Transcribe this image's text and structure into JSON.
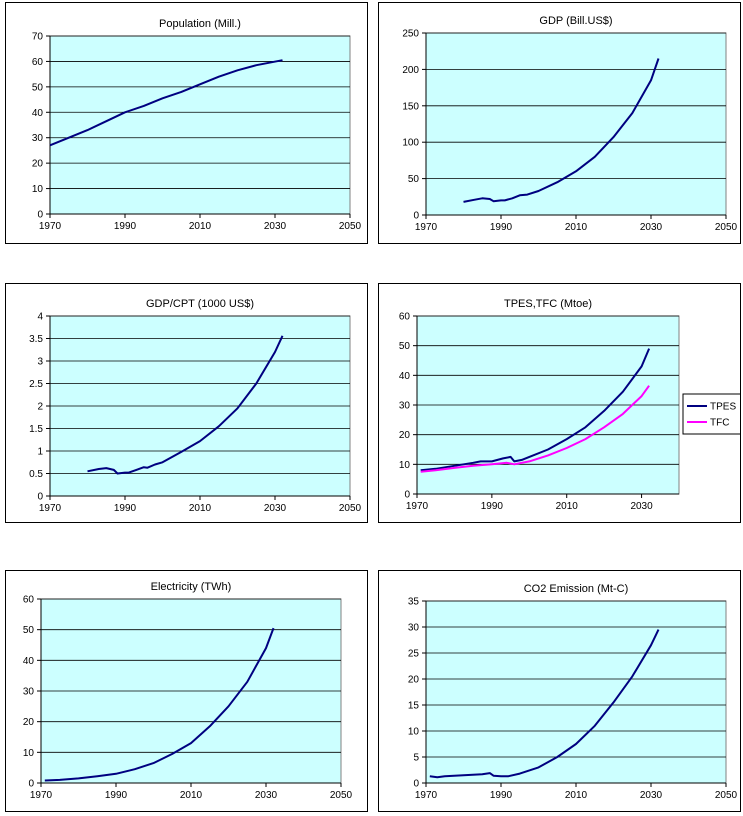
{
  "chart_data": [
    {
      "type": "line",
      "title": "Population (Mill.)",
      "xlim": [
        1970,
        2050
      ],
      "ylim": [
        0,
        70
      ],
      "xticks": [
        1970,
        1990,
        2010,
        2030,
        2050
      ],
      "yticks": [
        0,
        10,
        20,
        30,
        40,
        50,
        60,
        70
      ],
      "grid": true,
      "legend": "none",
      "series": [
        {
          "color": "#000080",
          "points": [
            [
              1970,
              27
            ],
            [
              1975,
              30
            ],
            [
              1980,
              33
            ],
            [
              1985,
              36.5
            ],
            [
              1990,
              40
            ],
            [
              1995,
              42.5
            ],
            [
              2000,
              45.5
            ],
            [
              2005,
              48
            ],
            [
              2010,
              51
            ],
            [
              2015,
              54
            ],
            [
              2020,
              56.5
            ],
            [
              2025,
              58.5
            ],
            [
              2032,
              60.5
            ]
          ]
        }
      ]
    },
    {
      "type": "line",
      "title": "GDP (Bill.US$)",
      "xlim": [
        1970,
        2050
      ],
      "ylim": [
        0,
        250
      ],
      "xticks": [
        1970,
        1990,
        2010,
        2030,
        2050
      ],
      "yticks": [
        0,
        50,
        100,
        150,
        200,
        250
      ],
      "grid": true,
      "legend": "none",
      "series": [
        {
          "color": "#000080",
          "points": [
            [
              1980,
              18
            ],
            [
              1983,
              21
            ],
            [
              1985,
              23
            ],
            [
              1987,
              22
            ],
            [
              1988,
              19
            ],
            [
              1990,
              20
            ],
            [
              1991,
              20
            ],
            [
              1993,
              23
            ],
            [
              1995,
              27
            ],
            [
              1997,
              28
            ],
            [
              2000,
              33
            ],
            [
              2005,
              45
            ],
            [
              2010,
              60
            ],
            [
              2015,
              80
            ],
            [
              2020,
              107
            ],
            [
              2025,
              140
            ],
            [
              2030,
              185
            ],
            [
              2032,
              215
            ]
          ]
        }
      ]
    },
    {
      "type": "line",
      "title": "GDP/CPT (1000 US$)",
      "xlim": [
        1970,
        2050
      ],
      "ylim": [
        0,
        4
      ],
      "xticks": [
        1970,
        1990,
        2010,
        2030,
        2050
      ],
      "yticks": [
        0,
        0.5,
        1,
        1.5,
        2,
        2.5,
        3,
        3.5,
        4
      ],
      "grid": true,
      "legend": "none",
      "series": [
        {
          "color": "#000080",
          "points": [
            [
              1980,
              0.55
            ],
            [
              1983,
              0.6
            ],
            [
              1985,
              0.62
            ],
            [
              1987,
              0.58
            ],
            [
              1988,
              0.5
            ],
            [
              1990,
              0.52
            ],
            [
              1991,
              0.52
            ],
            [
              1993,
              0.58
            ],
            [
              1995,
              0.64
            ],
            [
              1996,
              0.63
            ],
            [
              1998,
              0.7
            ],
            [
              2000,
              0.75
            ],
            [
              2005,
              0.98
            ],
            [
              2010,
              1.22
            ],
            [
              2015,
              1.55
            ],
            [
              2020,
              1.95
            ],
            [
              2025,
              2.5
            ],
            [
              2030,
              3.2
            ],
            [
              2032,
              3.56
            ]
          ]
        }
      ]
    },
    {
      "type": "line",
      "title": "TPES,TFC (Mtoe)",
      "xlim": [
        1970,
        2040
      ],
      "ylim": [
        0,
        60
      ],
      "xticks": [
        1970,
        1990,
        2010,
        2030
      ],
      "yticks": [
        0,
        10,
        20,
        30,
        40,
        50,
        60
      ],
      "grid": true,
      "legend": "right",
      "series": [
        {
          "name": "TPES",
          "color": "#000080",
          "points": [
            [
              1971,
              8
            ],
            [
              1975,
              8.5
            ],
            [
              1980,
              9.5
            ],
            [
              1985,
              10.5
            ],
            [
              1987,
              11
            ],
            [
              1990,
              11
            ],
            [
              1993,
              12
            ],
            [
              1995,
              12.5
            ],
            [
              1996,
              11
            ],
            [
              1998,
              11.5
            ],
            [
              2000,
              12.5
            ],
            [
              2005,
              15
            ],
            [
              2010,
              18.5
            ],
            [
              2015,
              22.5
            ],
            [
              2020,
              28
            ],
            [
              2025,
              34.5
            ],
            [
              2030,
              43
            ],
            [
              2032,
              49
            ]
          ]
        },
        {
          "name": "TFC",
          "color": "#ff00ff",
          "points": [
            [
              1971,
              7.5
            ],
            [
              1975,
              8
            ],
            [
              1980,
              8.8
            ],
            [
              1985,
              9.5
            ],
            [
              1990,
              10
            ],
            [
              1994,
              10.5
            ],
            [
              1996,
              10
            ],
            [
              1998,
              10.5
            ],
            [
              2000,
              11
            ],
            [
              2005,
              13
            ],
            [
              2010,
              15.5
            ],
            [
              2015,
              18.5
            ],
            [
              2020,
              22.5
            ],
            [
              2025,
              27
            ],
            [
              2030,
              33
            ],
            [
              2032,
              36.5
            ]
          ]
        }
      ]
    },
    {
      "type": "line",
      "title": "Electricity (TWh)",
      "xlim": [
        1970,
        2050
      ],
      "ylim": [
        0,
        60
      ],
      "xticks": [
        1970,
        1990,
        2010,
        2030,
        2050
      ],
      "yticks": [
        0,
        10,
        20,
        30,
        40,
        50,
        60
      ],
      "grid": true,
      "legend": "none",
      "series": [
        {
          "color": "#000080",
          "points": [
            [
              1971,
              0.8
            ],
            [
              1975,
              1
            ],
            [
              1980,
              1.5
            ],
            [
              1985,
              2.2
            ],
            [
              1990,
              3
            ],
            [
              1995,
              4.5
            ],
            [
              2000,
              6.5
            ],
            [
              2005,
              9.5
            ],
            [
              2010,
              13
            ],
            [
              2015,
              18.5
            ],
            [
              2020,
              25
            ],
            [
              2025,
              33
            ],
            [
              2030,
              44
            ],
            [
              2032,
              50.5
            ]
          ]
        }
      ]
    },
    {
      "type": "line",
      "title": "CO2 Emission (Mt-C)",
      "xlim": [
        1970,
        2050
      ],
      "ylim": [
        0,
        35
      ],
      "xticks": [
        1970,
        1990,
        2010,
        2030,
        2050
      ],
      "yticks": [
        0,
        5,
        10,
        15,
        20,
        25,
        30,
        35
      ],
      "grid": true,
      "legend": "none",
      "series": [
        {
          "color": "#000080",
          "points": [
            [
              1971,
              1.3
            ],
            [
              1973,
              1.1
            ],
            [
              1975,
              1.3
            ],
            [
              1980,
              1.5
            ],
            [
              1985,
              1.7
            ],
            [
              1987,
              1.9
            ],
            [
              1988,
              1.4
            ],
            [
              1990,
              1.3
            ],
            [
              1992,
              1.3
            ],
            [
              1995,
              1.8
            ],
            [
              2000,
              3
            ],
            [
              2005,
              5
            ],
            [
              2010,
              7.5
            ],
            [
              2015,
              11
            ],
            [
              2020,
              15.5
            ],
            [
              2025,
              20.5
            ],
            [
              2030,
              26.5
            ],
            [
              2032,
              29.5
            ]
          ]
        }
      ]
    }
  ]
}
